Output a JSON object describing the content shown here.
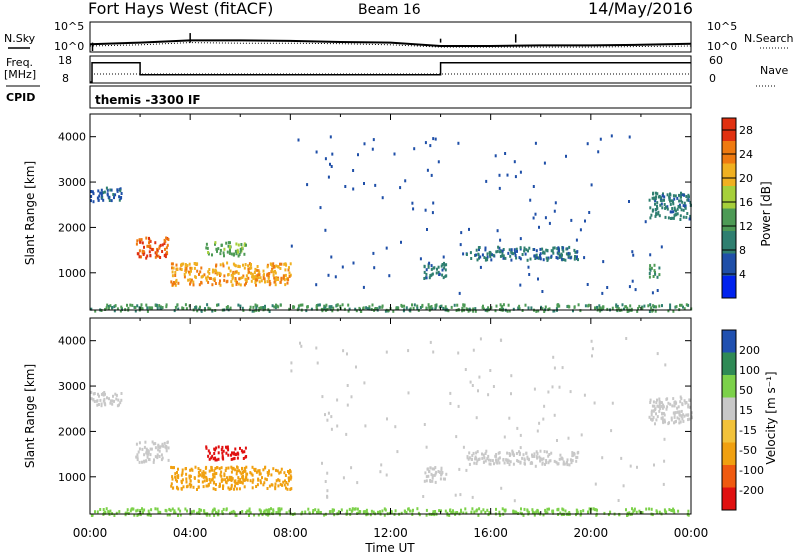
{
  "header": {
    "station": "Fort Hays West (fitACF)",
    "beam": "Beam 16",
    "date": "14/May/2016"
  },
  "strip_labels": {
    "nsky": "N.Sky",
    "nsearch": "N.Search",
    "freq_line1": "Freq.",
    "freq_line2": "[MHz]",
    "nave": "Nave",
    "cpid": "CPID",
    "cpid_value": "themis -3300 IF"
  },
  "strip_ticks": {
    "noise_left": [
      "10^5",
      "10^0"
    ],
    "noise_right": [
      "10^5",
      "10^0"
    ],
    "freq_left": [
      "18",
      "8"
    ],
    "nave_right": [
      "60",
      "0"
    ]
  },
  "colors": {
    "power_scale": [
      "#0022ee",
      "#1f4fa8",
      "#2f7f70",
      "#4d9a55",
      "#a6cf3a",
      "#f0b020",
      "#ef7a10",
      "#e03010"
    ],
    "velocity_scale": [
      "#e01010",
      "#ef5a10",
      "#f0a010",
      "#f2c23a",
      "#c8c8c8",
      "#7cd14a",
      "#2f8a55",
      "#2050b0"
    ]
  },
  "chart_data": [
    {
      "type": "line",
      "title": "N.Sky / N.Search",
      "x": [
        "00:00",
        "02:00",
        "04:00",
        "06:00",
        "08:00",
        "10:00",
        "12:00",
        "14:00",
        "16:00",
        "18:00",
        "20:00",
        "22:00",
        "24:00"
      ],
      "series": [
        {
          "name": "N.Sky",
          "values": [
            1.2,
            1.5,
            1.9,
            1.9,
            1.8,
            1.6,
            1.5,
            0.9,
            0.9,
            1.0,
            1.0,
            1.1,
            1.3
          ]
        },
        {
          "name": "N.Search",
          "values": [
            0.9,
            1.1,
            1.5,
            1.4,
            1.4,
            1.3,
            1.1,
            0.7,
            0.7,
            0.7,
            0.7,
            0.8,
            0.9
          ]
        }
      ],
      "ylim": [
        0,
        5
      ],
      "log_scale": true
    },
    {
      "type": "line",
      "title": "Freq. / Nave",
      "x": [
        "00:00",
        "00:05",
        "02:00",
        "14:00",
        "24:00"
      ],
      "series": [
        {
          "name": "Freq. [MHz]",
          "values": [
            8,
            16,
            11,
            16,
            16
          ]
        },
        {
          "name": "Nave",
          "values": [
            0,
            20,
            20,
            20,
            20
          ]
        }
      ],
      "ylim": [
        8,
        18
      ],
      "y2lim": [
        0,
        60
      ]
    },
    {
      "type": "heatmap",
      "panel": "power",
      "xlabel": "",
      "ylabel": "Slant Range [km]",
      "xlim_hours": [
        0,
        24
      ],
      "ylim": [
        180,
        4500
      ],
      "x_ticks": [
        "00:00",
        "04:00",
        "08:00",
        "12:00",
        "16:00",
        "20:00",
        "00:00"
      ],
      "y_ticks": [
        1000,
        2000,
        3000,
        4000
      ],
      "colorbar_label": "Power [dB]",
      "colorbar_ticks": [
        4,
        8,
        12,
        16,
        20,
        24,
        28
      ],
      "colorbar_range": [
        0,
        30
      ],
      "blobs": [
        {
          "t0": 0.0,
          "t1": 1.3,
          "r0": 2600,
          "r1": 2900,
          "v": 6
        },
        {
          "t0": 1.8,
          "t1": 3.1,
          "r0": 1350,
          "r1": 1800,
          "v": 26
        },
        {
          "t0": 3.2,
          "t1": 8.0,
          "r0": 750,
          "r1": 1250,
          "v": 22
        },
        {
          "t0": 4.6,
          "t1": 6.2,
          "r0": 1400,
          "r1": 1700,
          "v": 14
        },
        {
          "t0": 13.3,
          "t1": 14.2,
          "r0": 900,
          "r1": 1250,
          "v": 9
        },
        {
          "t0": 15.0,
          "t1": 19.5,
          "r0": 1300,
          "r1": 1600,
          "v": 8
        },
        {
          "t0": 22.3,
          "t1": 24.0,
          "r0": 2200,
          "r1": 2800,
          "v": 9
        },
        {
          "t0": 22.3,
          "t1": 22.7,
          "r0": 900,
          "r1": 1200,
          "v": 12
        },
        {
          "t0": 0.0,
          "t1": 24.0,
          "r0": 180,
          "r1": 330,
          "v": 12
        }
      ]
    },
    {
      "type": "heatmap",
      "panel": "velocity",
      "xlabel": "Time UT",
      "ylabel": "Slant Range [km]",
      "xlim_hours": [
        0,
        24
      ],
      "ylim": [
        180,
        4500
      ],
      "x_ticks": [
        "00:00",
        "04:00",
        "08:00",
        "12:00",
        "16:00",
        "20:00",
        "00:00"
      ],
      "y_ticks": [
        1000,
        2000,
        3000,
        4000
      ],
      "colorbar_label": "Velocity [m s⁻¹]",
      "colorbar_ticks": [
        200,
        100,
        50,
        15,
        -15,
        -50,
        -100,
        -200
      ],
      "blobs": [
        {
          "t0": 0.0,
          "t1": 1.3,
          "r0": 2600,
          "r1": 2900,
          "v": 0
        },
        {
          "t0": 1.8,
          "t1": 3.1,
          "r0": 1350,
          "r1": 1800,
          "v": 0
        },
        {
          "t0": 3.2,
          "t1": 8.0,
          "r0": 750,
          "r1": 1250,
          "v": -60
        },
        {
          "t0": 4.6,
          "t1": 6.2,
          "r0": 1400,
          "r1": 1700,
          "v": -200
        },
        {
          "t0": 13.3,
          "t1": 14.2,
          "r0": 900,
          "r1": 1250,
          "v": 0
        },
        {
          "t0": 15.0,
          "t1": 19.5,
          "r0": 1300,
          "r1": 1600,
          "v": 0
        },
        {
          "t0": 22.3,
          "t1": 24.0,
          "r0": 2200,
          "r1": 2800,
          "v": 0
        },
        {
          "t0": 0.0,
          "t1": 24.0,
          "r0": 180,
          "r1": 330,
          "v": 30
        }
      ]
    }
  ]
}
